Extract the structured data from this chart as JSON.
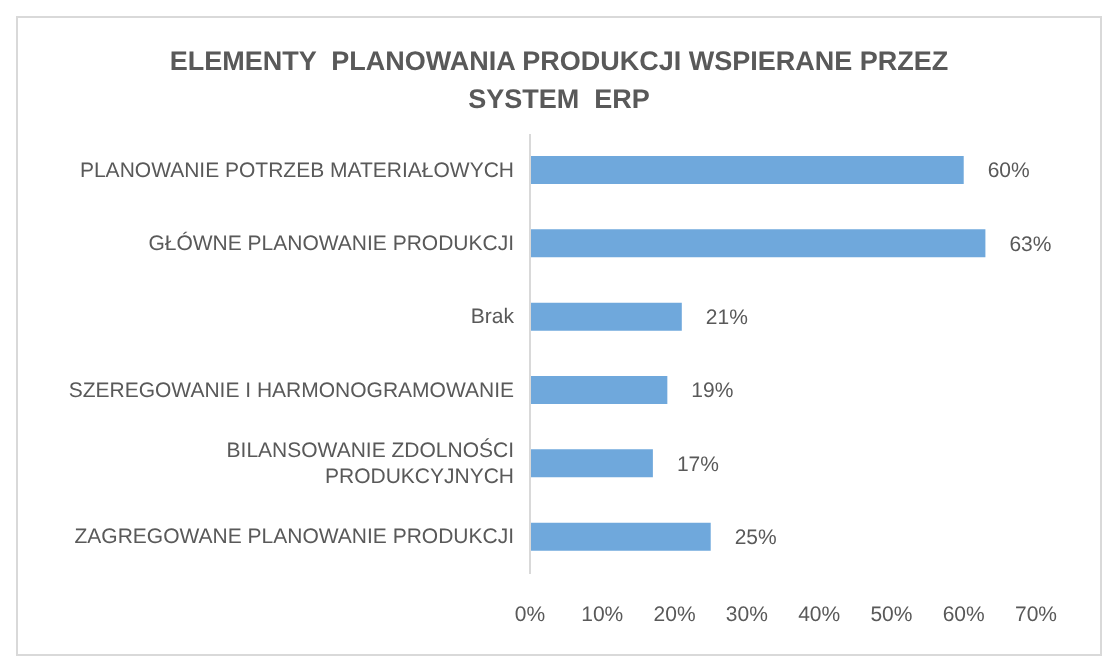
{
  "chart_data": {
    "type": "bar",
    "orientation": "horizontal",
    "title": "ELEMENTY  PLANOWANIA PRODUKCJI WSPIERANE PRZEZ SYSTEM  ERP",
    "categories": [
      "PLANOWANIE  POTRZEB MATERIAŁOWYCH",
      "GŁÓWNE PLANOWANIE PRODUKCJI",
      "Brak",
      "SZEREGOWANIE I HARMONOGRAMOWANIE",
      "BILANSOWANIE ZDOLNOŚCI PRODUKCYJNYCH",
      "ZAGREGOWANE PLANOWANIE PRODUKCJI"
    ],
    "values": [
      60,
      63,
      21,
      19,
      17,
      25
    ],
    "value_labels": [
      "60%",
      "63%",
      "21%",
      "19%",
      "17%",
      "25%"
    ],
    "color": "#6fa8dc",
    "xlim": [
      0,
      70
    ],
    "xticks": [
      {
        "value": 0,
        "label": "0%"
      },
      {
        "value": 10,
        "label": "10%"
      },
      {
        "value": 20,
        "label": "20%"
      },
      {
        "value": 30,
        "label": "30%"
      },
      {
        "value": 40,
        "label": "40%"
      },
      {
        "value": 50,
        "label": "50%"
      },
      {
        "value": 60,
        "label": "60%"
      },
      {
        "value": 70,
        "label": "70%"
      }
    ],
    "grid": false
  }
}
